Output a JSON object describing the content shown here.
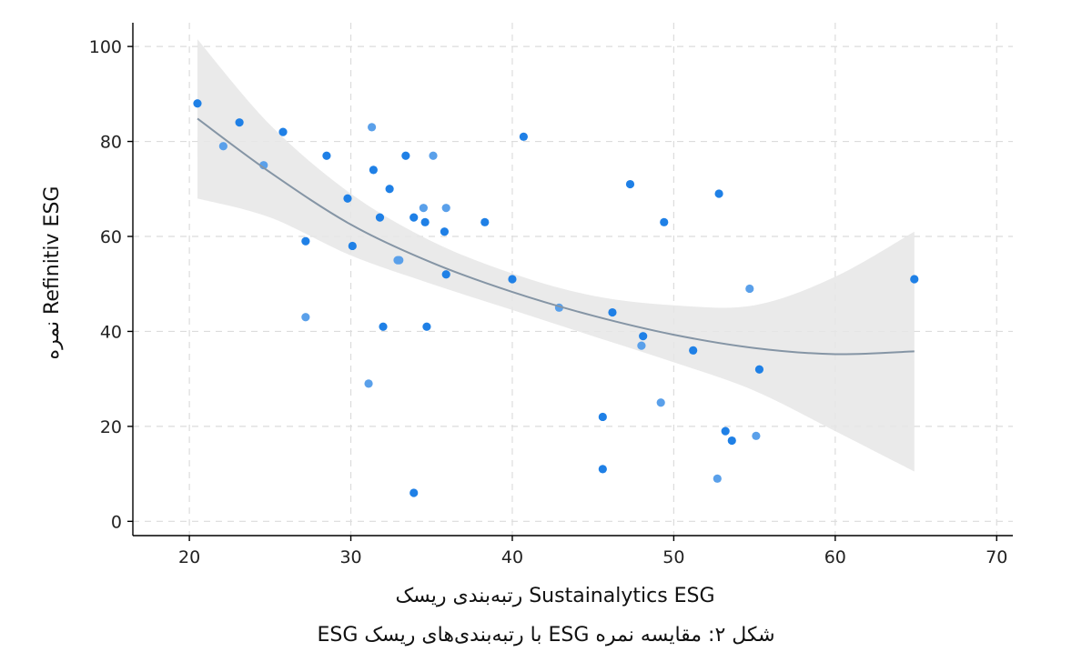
{
  "figure": {
    "caption": "شکل ۲: مقایسه نمره ESG با رتبه‌بندی‌های ریسک ESG"
  },
  "chart_data": {
    "type": "scatter",
    "title": "",
    "xlabel": "رتبه‌بندی ریسک Sustainalytics ESG",
    "ylabel": "نمره Refinitiv ESG",
    "xlim": [
      16.5,
      71
    ],
    "ylim": [
      -3,
      105
    ],
    "x_ticks": [
      20,
      30,
      40,
      50,
      60,
      70
    ],
    "y_ticks": [
      0,
      20,
      40,
      60,
      80,
      100
    ],
    "grid": true,
    "legend": "none",
    "colors": {
      "point": "#1f80e6",
      "point_light": "#5aa0ea",
      "trend_line": "#8595a5",
      "confidence_band": "#e6e6e6",
      "grid": "#dcdcdc"
    },
    "points": [
      {
        "x": 20.5,
        "y": 88
      },
      {
        "x": 22.1,
        "y": 79
      },
      {
        "x": 23.1,
        "y": 84
      },
      {
        "x": 24.6,
        "y": 75
      },
      {
        "x": 25.8,
        "y": 82
      },
      {
        "x": 27.2,
        "y": 59
      },
      {
        "x": 27.2,
        "y": 43
      },
      {
        "x": 28.5,
        "y": 77
      },
      {
        "x": 29.8,
        "y": 68
      },
      {
        "x": 30.1,
        "y": 58
      },
      {
        "x": 31.1,
        "y": 29
      },
      {
        "x": 31.3,
        "y": 83
      },
      {
        "x": 31.4,
        "y": 74
      },
      {
        "x": 31.8,
        "y": 64
      },
      {
        "x": 32.0,
        "y": 41
      },
      {
        "x": 32.4,
        "y": 70
      },
      {
        "x": 32.9,
        "y": 55
      },
      {
        "x": 33.0,
        "y": 55
      },
      {
        "x": 33.4,
        "y": 77
      },
      {
        "x": 33.9,
        "y": 64
      },
      {
        "x": 33.9,
        "y": 6
      },
      {
        "x": 34.5,
        "y": 66
      },
      {
        "x": 34.6,
        "y": 63
      },
      {
        "x": 34.7,
        "y": 41
      },
      {
        "x": 35.1,
        "y": 77
      },
      {
        "x": 35.8,
        "y": 61
      },
      {
        "x": 35.9,
        "y": 66
      },
      {
        "x": 35.9,
        "y": 52
      },
      {
        "x": 38.3,
        "y": 63
      },
      {
        "x": 40.0,
        "y": 51
      },
      {
        "x": 40.7,
        "y": 81
      },
      {
        "x": 42.9,
        "y": 45
      },
      {
        "x": 45.6,
        "y": 22
      },
      {
        "x": 45.6,
        "y": 11
      },
      {
        "x": 46.2,
        "y": 44
      },
      {
        "x": 47.3,
        "y": 71
      },
      {
        "x": 48.0,
        "y": 37
      },
      {
        "x": 48.1,
        "y": 39
      },
      {
        "x": 49.2,
        "y": 25
      },
      {
        "x": 49.4,
        "y": 63
      },
      {
        "x": 51.2,
        "y": 36
      },
      {
        "x": 52.7,
        "y": 9
      },
      {
        "x": 52.8,
        "y": 69
      },
      {
        "x": 53.2,
        "y": 19
      },
      {
        "x": 53.6,
        "y": 17
      },
      {
        "x": 54.7,
        "y": 49
      },
      {
        "x": 55.1,
        "y": 18
      },
      {
        "x": 55.3,
        "y": 32
      },
      {
        "x": 64.9,
        "y": 51
      }
    ],
    "trend": {
      "x": [
        20.5,
        25,
        30,
        35,
        40,
        45,
        50,
        55,
        60,
        64.9
      ],
      "y": [
        84.8,
        73.5,
        62.5,
        54.5,
        48.3,
        43.3,
        39.3,
        36.5,
        35.2,
        35.8
      ],
      "lower": [
        68.0,
        64.0,
        56.0,
        50.0,
        44.5,
        39.0,
        33.5,
        27.5,
        19.0,
        10.5
      ],
      "upper": [
        101.5,
        83.5,
        69.0,
        59.0,
        52.2,
        47.5,
        45.5,
        45.5,
        51.5,
        61.0
      ]
    }
  }
}
